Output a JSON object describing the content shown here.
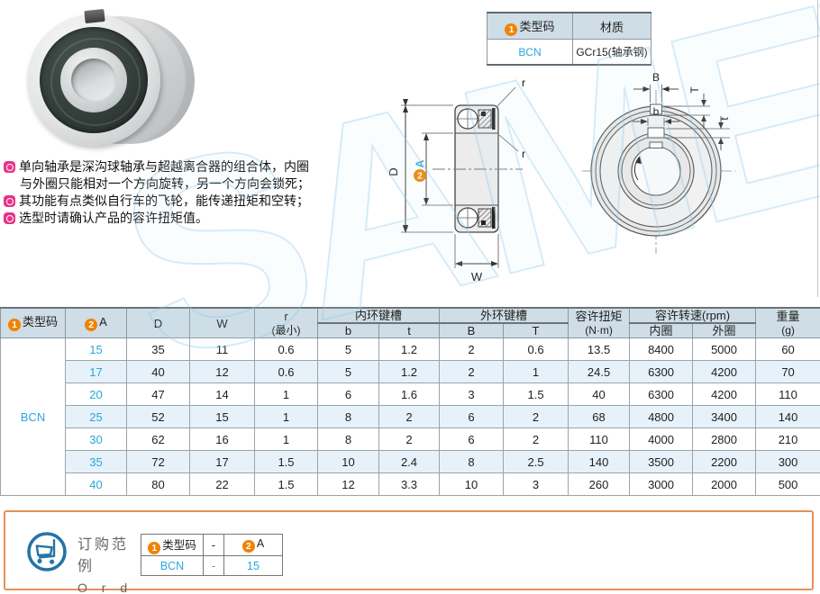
{
  "spec_table": {
    "col1_badge": "1",
    "col1_header": "类型码",
    "col2_header": "材质",
    "row": {
      "type_code": "BCN",
      "material": "GCr15(轴承钢)"
    }
  },
  "description": {
    "items": [
      "单向轴承是深沟球轴承与超越离合器的组合体，内圈与外圈只能相对一个方向旋转，另一个方向会锁死；",
      "其功能有点类似自行车的飞轮，能传递扭矩和空转；",
      "选型时请确认产品的容许扭矩值。"
    ]
  },
  "drawings": {
    "section_labels": {
      "d": "D",
      "a_badge": "2",
      "a": "A",
      "w": "W",
      "r_top": "r",
      "r_mid": "r"
    },
    "front_labels": {
      "B": "B",
      "T": "T",
      "b": "b",
      "t": "t"
    }
  },
  "main_table": {
    "header": {
      "type_code_badge": "1",
      "type_code": "类型码",
      "a_badge": "2",
      "a": "A",
      "d": "D",
      "w": "W",
      "r_line1": "r",
      "r_line2": "(最小)",
      "inner_keyway": "内环键槽",
      "b": "b",
      "t": "t",
      "outer_keyway": "外环键槽",
      "B": "B",
      "T": "T",
      "torque_line1": "容许扭矩",
      "torque_line2": "(N·m)",
      "speed": "容许转速(rpm)",
      "speed_inner": "内圈",
      "speed_outer": "外圈",
      "weight_line1": "重量",
      "weight_line2": "(g)"
    },
    "type_code_value": "BCN",
    "rows": [
      {
        "a": "15",
        "d": "35",
        "w": "11",
        "r": "0.6",
        "b": "5",
        "t": "1.2",
        "B": "2",
        "T": "0.6",
        "torque": "13.5",
        "rpm_in": "8400",
        "rpm_out": "5000",
        "weight": "60"
      },
      {
        "a": "17",
        "d": "40",
        "w": "12",
        "r": "0.6",
        "b": "5",
        "t": "1.2",
        "B": "2",
        "T": "1",
        "torque": "24.5",
        "rpm_in": "6300",
        "rpm_out": "4200",
        "weight": "70"
      },
      {
        "a": "20",
        "d": "47",
        "w": "14",
        "r": "1",
        "b": "6",
        "t": "1.6",
        "B": "3",
        "T": "1.5",
        "torque": "40",
        "rpm_in": "6300",
        "rpm_out": "4200",
        "weight": "110"
      },
      {
        "a": "25",
        "d": "52",
        "w": "15",
        "r": "1",
        "b": "8",
        "t": "2",
        "B": "6",
        "T": "2",
        "torque": "68",
        "rpm_in": "4800",
        "rpm_out": "3400",
        "weight": "140"
      },
      {
        "a": "30",
        "d": "62",
        "w": "16",
        "r": "1",
        "b": "8",
        "t": "2",
        "B": "6",
        "T": "2",
        "torque": "110",
        "rpm_in": "4000",
        "rpm_out": "2800",
        "weight": "210"
      },
      {
        "a": "35",
        "d": "72",
        "w": "17",
        "r": "1.5",
        "b": "10",
        "t": "2.4",
        "B": "8",
        "T": "2.5",
        "torque": "140",
        "rpm_in": "3500",
        "rpm_out": "2200",
        "weight": "300"
      },
      {
        "a": "40",
        "d": "80",
        "w": "22",
        "r": "1.5",
        "b": "12",
        "t": "3.3",
        "B": "10",
        "T": "3",
        "torque": "260",
        "rpm_in": "3000",
        "rpm_out": "2000",
        "weight": "500"
      }
    ]
  },
  "order": {
    "title_cn": "订购范例",
    "title_en": "O r d e r",
    "header": {
      "type_badge": "1",
      "type_label": "类型码",
      "dash": "-",
      "a_badge": "2",
      "a_label": "A"
    },
    "row": {
      "type_code": "BCN",
      "dash": "-",
      "a": "15"
    }
  },
  "watermark": "SAMET",
  "colors": {
    "accent_blue": "#2aa7df",
    "badge_orange": "#f08300",
    "bullet_pink": "#e9328a",
    "order_border": "#e98f57",
    "header_bg": "#cfdde6",
    "row_alt_bg": "#e6f1f9",
    "cart_blue": "#2474a5"
  }
}
